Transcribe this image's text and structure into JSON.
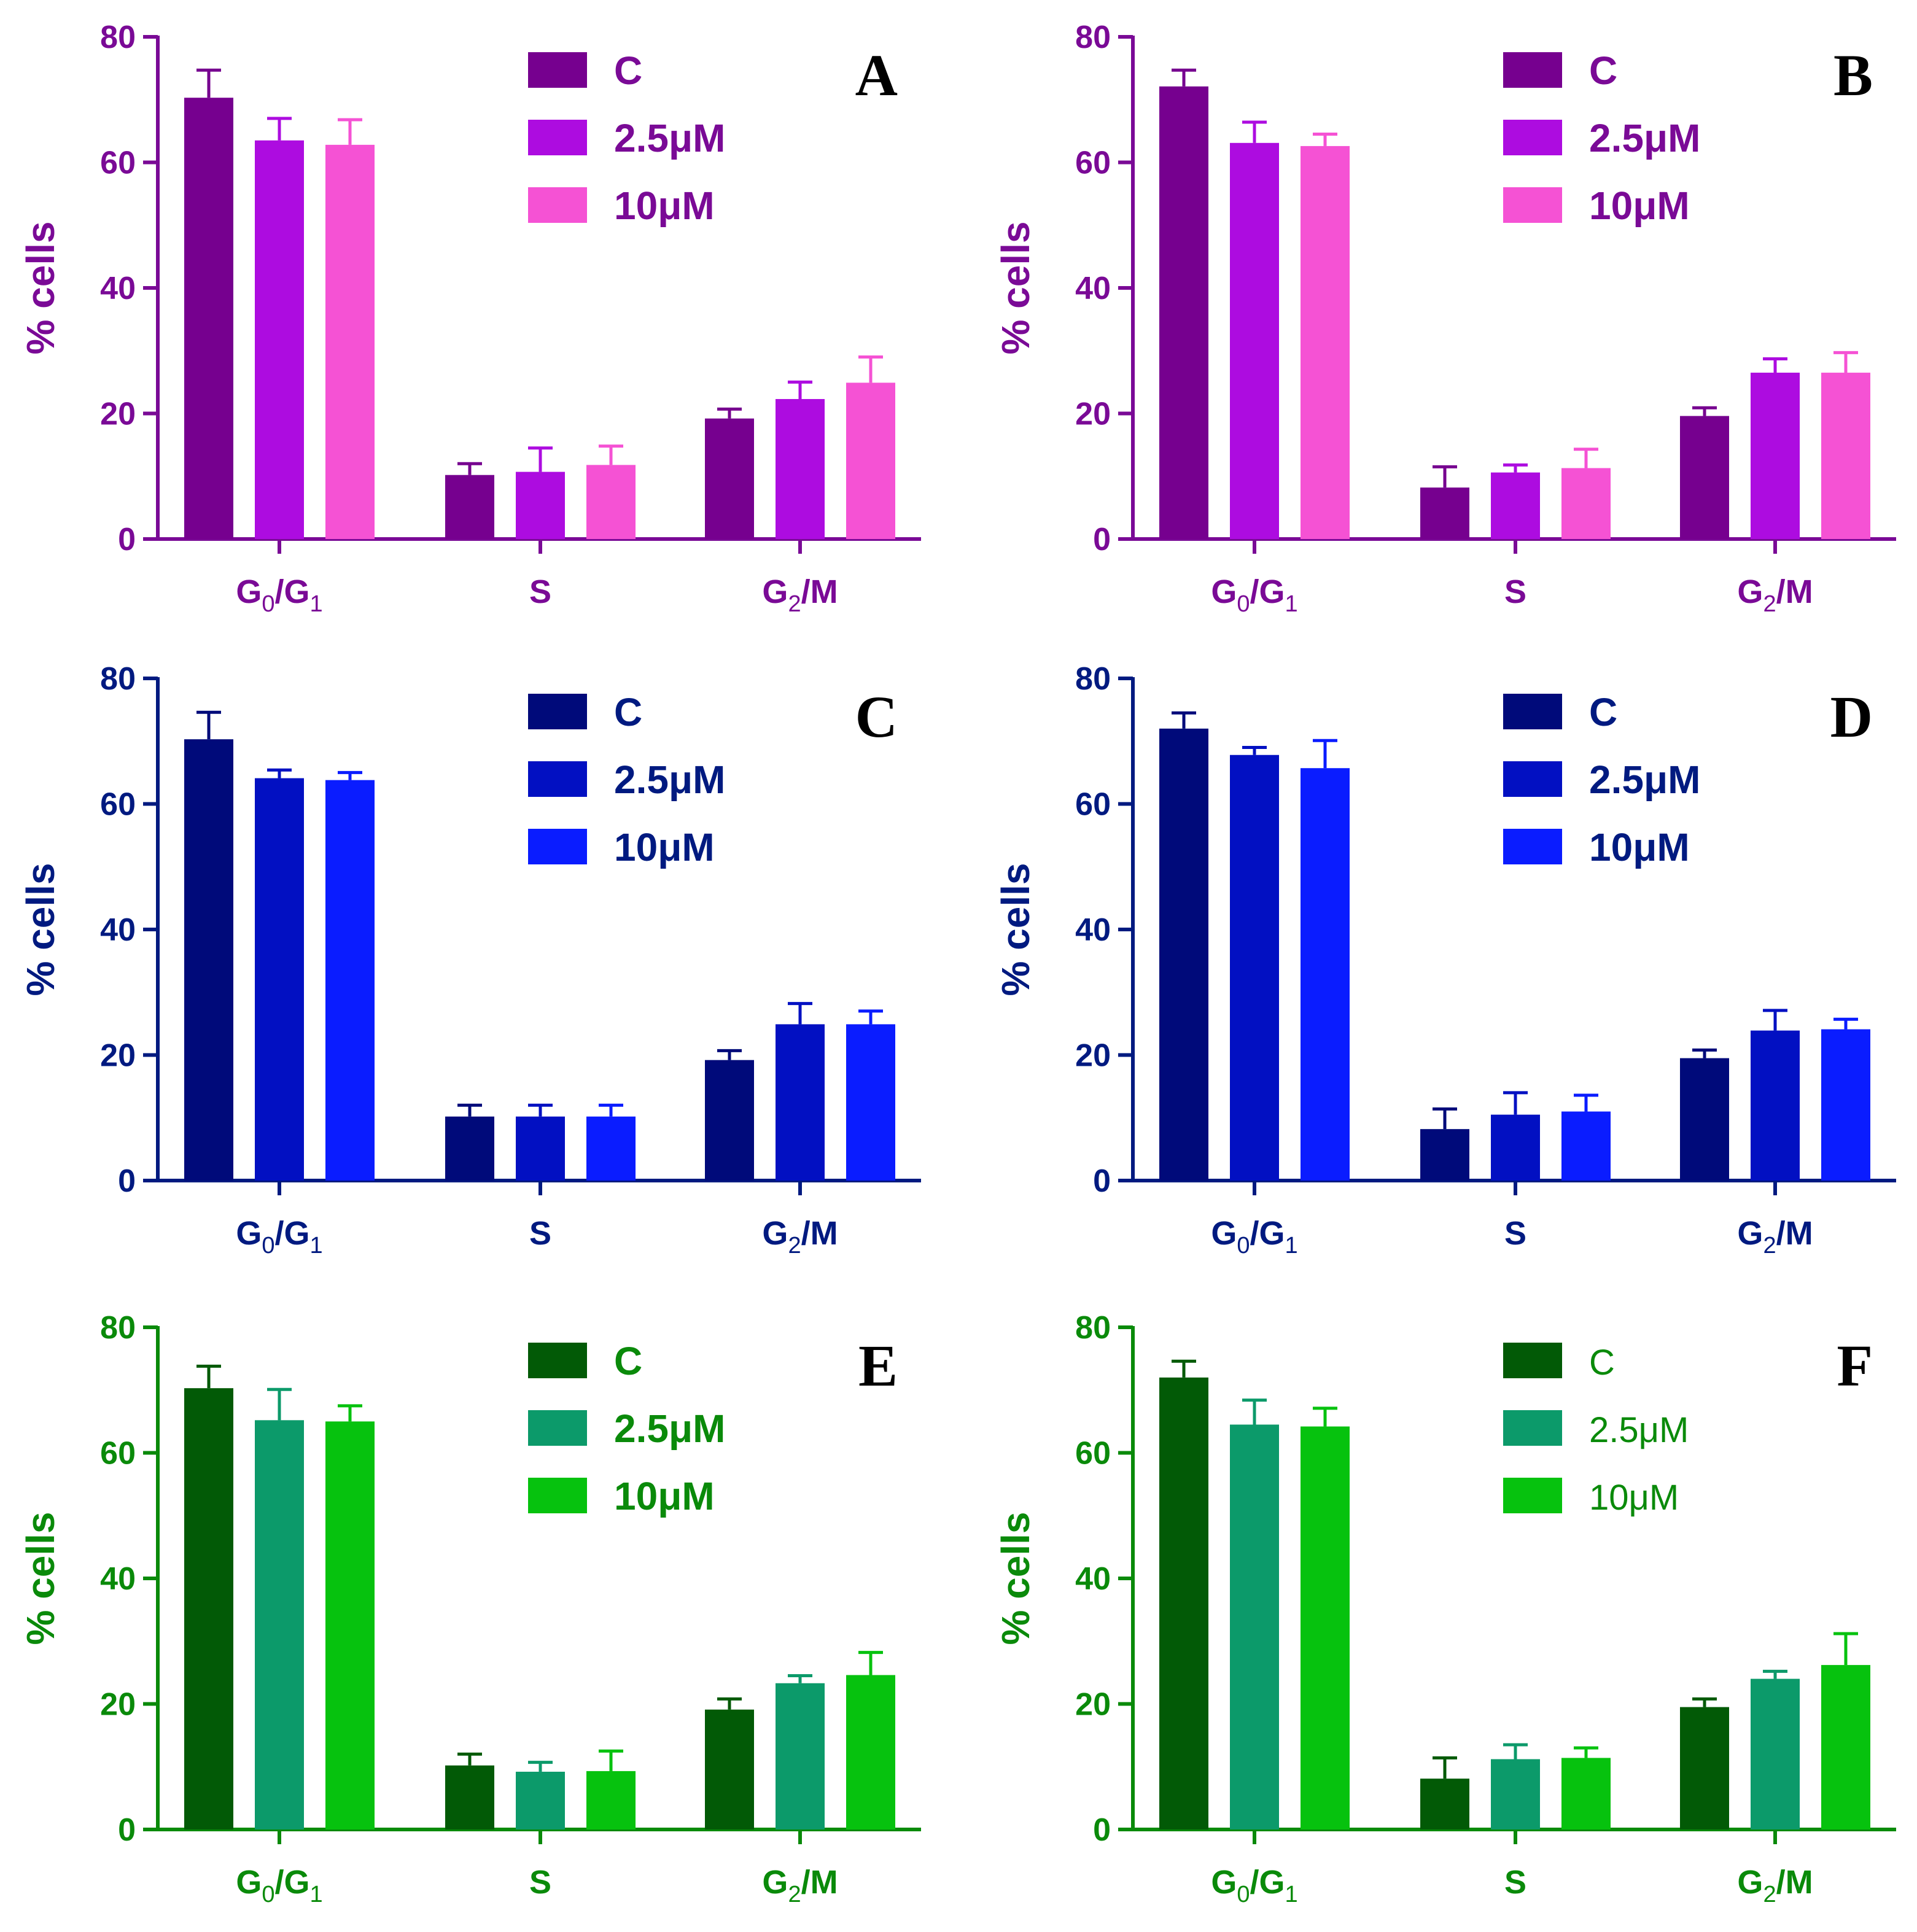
{
  "figure": {
    "description_free": true
  },
  "chart_data": [
    {
      "panel": "A",
      "type": "bar",
      "color": "#7a0a96",
      "legend_style": "bold",
      "title": "",
      "xlabel": "",
      "ylabel": "% cells",
      "ylim": [
        0,
        80
      ],
      "yticks": [
        "0",
        "20",
        "40",
        "60",
        "80"
      ],
      "categories": [
        {
          "main": "G",
          "sub1": "0",
          "mid": "/G",
          "sub2": "1",
          "end": ""
        },
        {
          "main": "S",
          "sub1": "",
          "mid": "",
          "sub2": "",
          "end": ""
        },
        {
          "main": "G",
          "sub1": "2",
          "mid": "/M",
          "sub2": "",
          "end": ""
        }
      ],
      "series": [
        {
          "name": "C",
          "color": "#76008f",
          "values": [
            70.3,
            10.2,
            19.2
          ],
          "errors": [
            4.4,
            1.8,
            1.5
          ]
        },
        {
          "name": "2.5μM",
          "color": "#ad0ce0",
          "values": [
            63.5,
            10.7,
            22.3
          ],
          "errors": [
            3.5,
            3.8,
            2.7
          ]
        },
        {
          "name": "10μM",
          "color": "#f552d4",
          "values": [
            62.8,
            11.8,
            24.9
          ],
          "errors": [
            4.0,
            3.0,
            4.1
          ]
        }
      ]
    },
    {
      "panel": "B",
      "type": "bar",
      "color": "#7a0a96",
      "legend_style": "bold",
      "title": "",
      "xlabel": "",
      "ylabel": "% cells",
      "ylim": [
        0,
        80
      ],
      "yticks": [
        "0",
        "20",
        "40",
        "60",
        "80"
      ],
      "categories": [
        {
          "main": "G",
          "sub1": "0",
          "mid": "/G",
          "sub2": "1",
          "end": ""
        },
        {
          "main": "S",
          "sub1": "",
          "mid": "",
          "sub2": "",
          "end": ""
        },
        {
          "main": "G",
          "sub1": "2",
          "mid": "/M",
          "sub2": "",
          "end": ""
        }
      ],
      "series": [
        {
          "name": "C",
          "color": "#76008f",
          "values": [
            72.1,
            8.2,
            19.6
          ],
          "errors": [
            2.6,
            3.3,
            1.3
          ]
        },
        {
          "name": "2.5μM",
          "color": "#ad0ce0",
          "values": [
            63.1,
            10.6,
            26.5
          ],
          "errors": [
            3.3,
            1.2,
            2.2
          ]
        },
        {
          "name": "10μM",
          "color": "#f552d4",
          "values": [
            62.6,
            11.3,
            26.5
          ],
          "errors": [
            1.9,
            3.0,
            3.2
          ]
        }
      ]
    },
    {
      "panel": "C",
      "type": "bar",
      "color": "#001a80",
      "legend_style": "bold",
      "title": "",
      "xlabel": "",
      "ylabel": "% cells",
      "ylim": [
        0,
        80
      ],
      "yticks": [
        "0",
        "20",
        "40",
        "60",
        "80"
      ],
      "categories": [
        {
          "main": "G",
          "sub1": "0",
          "mid": "/G",
          "sub2": "1",
          "end": ""
        },
        {
          "main": "S",
          "sub1": "",
          "mid": "",
          "sub2": "",
          "end": ""
        },
        {
          "main": "G",
          "sub1": "2",
          "mid": "/M",
          "sub2": "",
          "end": ""
        }
      ],
      "series": [
        {
          "name": "C",
          "color": "#000a7a",
          "values": [
            70.3,
            10.2,
            19.2
          ],
          "errors": [
            4.3,
            1.8,
            1.5
          ]
        },
        {
          "name": "2.5μM",
          "color": "#0210c2",
          "values": [
            64.1,
            10.2,
            24.9
          ],
          "errors": [
            1.3,
            1.8,
            3.3
          ]
        },
        {
          "name": "10μM",
          "color": "#0a1cff",
          "values": [
            63.8,
            10.2,
            24.9
          ],
          "errors": [
            1.2,
            1.8,
            2.1
          ]
        }
      ]
    },
    {
      "panel": "D",
      "type": "bar",
      "color": "#001a80",
      "legend_style": "bold",
      "title": "",
      "xlabel": "",
      "ylabel": "% cells",
      "ylim": [
        0,
        80
      ],
      "yticks": [
        "0",
        "20",
        "40",
        "60",
        "80"
      ],
      "categories": [
        {
          "main": "G",
          "sub1": "0",
          "mid": "/G",
          "sub2": "1",
          "end": ""
        },
        {
          "main": "S",
          "sub1": "",
          "mid": "",
          "sub2": "",
          "end": ""
        },
        {
          "main": "G",
          "sub1": "2",
          "mid": "/M",
          "sub2": "",
          "end": ""
        }
      ],
      "series": [
        {
          "name": "C",
          "color": "#000a7a",
          "values": [
            72.0,
            8.2,
            19.5
          ],
          "errors": [
            2.5,
            3.2,
            1.3
          ]
        },
        {
          "name": "2.5μM",
          "color": "#0210c2",
          "values": [
            67.8,
            10.5,
            23.9
          ],
          "errors": [
            1.2,
            3.5,
            3.2
          ]
        },
        {
          "name": "10μM",
          "color": "#0a1cff",
          "values": [
            65.7,
            11.0,
            24.1
          ],
          "errors": [
            4.4,
            2.6,
            1.6
          ]
        }
      ]
    },
    {
      "panel": "E",
      "type": "bar",
      "color": "#0a8a0a",
      "legend_style": "bold",
      "title": "",
      "xlabel": "",
      "ylabel": "% cells",
      "ylim": [
        0,
        80
      ],
      "yticks": [
        "0",
        "20",
        "40",
        "60",
        "80"
      ],
      "categories": [
        {
          "main": "G",
          "sub1": "0",
          "mid": "/G",
          "sub2": "1",
          "end": ""
        },
        {
          "main": "S",
          "sub1": "",
          "mid": "",
          "sub2": "",
          "end": ""
        },
        {
          "main": "G",
          "sub1": "2",
          "mid": "/M",
          "sub2": "",
          "end": ""
        }
      ],
      "series": [
        {
          "name": "C",
          "color": "#025a06",
          "values": [
            70.3,
            10.2,
            19.1
          ],
          "errors": [
            3.5,
            1.8,
            1.7
          ]
        },
        {
          "name": "2.5μM",
          "color": "#0c9a6a",
          "values": [
            65.2,
            9.2,
            23.3
          ],
          "errors": [
            4.9,
            1.5,
            1.2
          ]
        },
        {
          "name": "10μM",
          "color": "#06c20e",
          "values": [
            65.0,
            9.3,
            24.6
          ],
          "errors": [
            2.5,
            3.2,
            3.6
          ]
        }
      ]
    },
    {
      "panel": "F",
      "type": "bar",
      "color": "#0a8a0a",
      "legend_style": "normal",
      "title": "",
      "xlabel": "",
      "ylabel": "% cells",
      "ylim": [
        0,
        80
      ],
      "yticks": [
        "0",
        "20",
        "40",
        "60",
        "80"
      ],
      "categories": [
        {
          "main": "G",
          "sub1": "0",
          "mid": "/G",
          "sub2": "1",
          "end": ""
        },
        {
          "main": "S",
          "sub1": "",
          "mid": "",
          "sub2": "",
          "end": ""
        },
        {
          "main": "G",
          "sub1": "2",
          "mid": "/M",
          "sub2": "",
          "end": ""
        }
      ],
      "series": [
        {
          "name": "C",
          "color": "#025a06",
          "values": [
            72.0,
            8.1,
            19.5
          ],
          "errors": [
            2.6,
            3.3,
            1.3
          ]
        },
        {
          "name": "2.5μM",
          "color": "#0c9a6a",
          "values": [
            64.5,
            11.2,
            24.0
          ],
          "errors": [
            3.9,
            2.3,
            1.2
          ]
        },
        {
          "name": "10μM",
          "color": "#06c20e",
          "values": [
            64.2,
            11.4,
            26.2
          ],
          "errors": [
            2.9,
            1.6,
            5.0
          ]
        }
      ]
    }
  ]
}
